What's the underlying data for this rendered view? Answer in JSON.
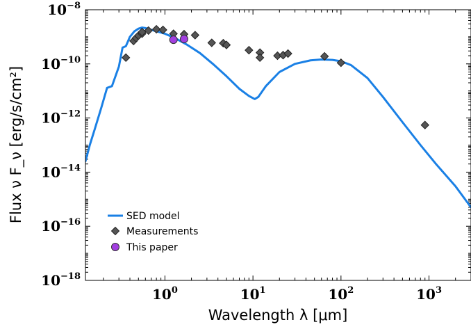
{
  "chart_data": {
    "type": "line",
    "xlabel": "Wavelength λ [μm]",
    "ylabel": "Flux ν F_ν [erg/s/cm²]",
    "xscale": "log",
    "yscale": "log",
    "xlim": [
      0.125,
      3000
    ],
    "ylim": [
      1e-18,
      1e-08
    ],
    "x_ticks": [
      {
        "value": 1,
        "base": "10",
        "exp": "0"
      },
      {
        "value": 10,
        "base": "10",
        "exp": "1"
      },
      {
        "value": 100,
        "base": "10",
        "exp": "2"
      },
      {
        "value": 1000,
        "base": "10",
        "exp": "3"
      }
    ],
    "y_ticks": [
      {
        "value": 1e-08,
        "base": "10",
        "exp": "−8"
      },
      {
        "value": 1e-10,
        "base": "10",
        "exp": "−10"
      },
      {
        "value": 1e-12,
        "base": "10",
        "exp": "−12"
      },
      {
        "value": 1e-14,
        "base": "10",
        "exp": "−14"
      },
      {
        "value": 1e-16,
        "base": "10",
        "exp": "−16"
      },
      {
        "value": 1e-18,
        "base": "10",
        "exp": "−18"
      }
    ],
    "legend_position": "lower-left",
    "series": [
      {
        "name": "SED model",
        "kind": "line",
        "color": "#1a80e5",
        "x": [
          0.125,
          0.14,
          0.16,
          0.19,
          0.22,
          0.25,
          0.3,
          0.33,
          0.36,
          0.4,
          0.45,
          0.5,
          0.55,
          0.6,
          0.7,
          0.8,
          1.0,
          1.3,
          1.8,
          2.5,
          3.5,
          5.0,
          7.0,
          9.0,
          10.5,
          11.5,
          14.0,
          20.0,
          30.0,
          45.0,
          60.0,
          80.0,
          100.0,
          130.0,
          200.0,
          300.0,
          500.0,
          800.0,
          1200.0,
          2000.0,
          3000.0
        ],
        "y": [
          2.5e-14,
          1e-13,
          4e-13,
          2.5e-12,
          1.3e-11,
          1.5e-11,
          8e-11,
          4e-10,
          4.5e-10,
          1e-09,
          1.6e-09,
          2e-09,
          2.2e-09,
          2.1e-09,
          1.8e-09,
          1.6e-09,
          1.3e-09,
          9e-10,
          5e-10,
          2.5e-10,
          1e-10,
          3.5e-11,
          1.2e-11,
          6.5e-12,
          5e-12,
          6e-12,
          1.5e-11,
          5e-11,
          1e-10,
          1.35e-10,
          1.45e-10,
          1.4e-10,
          1.25e-10,
          9e-11,
          3e-11,
          6e-12,
          7e-13,
          1e-13,
          2e-14,
          3e-15,
          5e-16
        ]
      },
      {
        "name": "Measurements",
        "kind": "scatter",
        "marker": "diamond",
        "color": "#555555",
        "x": [
          0.36,
          0.44,
          0.47,
          0.5,
          0.55,
          0.55,
          0.65,
          0.8,
          0.95,
          1.25,
          1.65,
          2.2,
          3.4,
          4.6,
          5.0,
          9.0,
          12.0,
          12.0,
          19.0,
          22.0,
          25.0,
          65.0,
          100.0,
          900.0
        ],
        "y": [
          1.7e-10,
          7e-10,
          9e-10,
          1.1e-09,
          1.3e-09,
          1.5e-09,
          1.7e-09,
          1.9e-09,
          1.8e-09,
          1.3e-09,
          1.25e-09,
          1.15e-09,
          6e-10,
          5.8e-10,
          5e-10,
          3.2e-10,
          2.6e-10,
          1.7e-10,
          2e-10,
          2.1e-10,
          2.4e-10,
          1.9e-10,
          1.1e-10,
          5.5e-13
        ]
      },
      {
        "name": "This paper",
        "kind": "scatter",
        "marker": "circle",
        "color": "#a23fe0",
        "x": [
          1.25,
          1.65
        ],
        "y": [
          7.8e-10,
          8.3e-10
        ]
      }
    ]
  }
}
